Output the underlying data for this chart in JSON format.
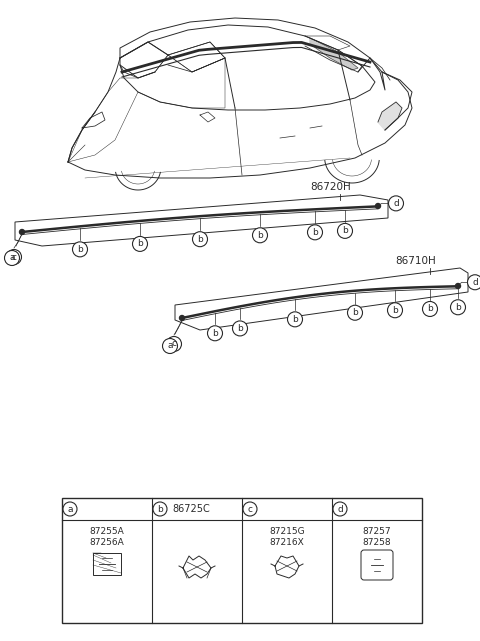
{
  "bg_color": "#ffffff",
  "label_86720H": "86720H",
  "label_86710H": "86710H",
  "parts_table": {
    "a_codes": [
      "87255A",
      "87256A"
    ],
    "b_code": "86725C",
    "c_codes": [
      "87215G",
      "87216X"
    ],
    "d_codes": [
      "87257",
      "87258"
    ]
  },
  "fig_width": 4.8,
  "fig_height": 6.41,
  "dpi": 100
}
